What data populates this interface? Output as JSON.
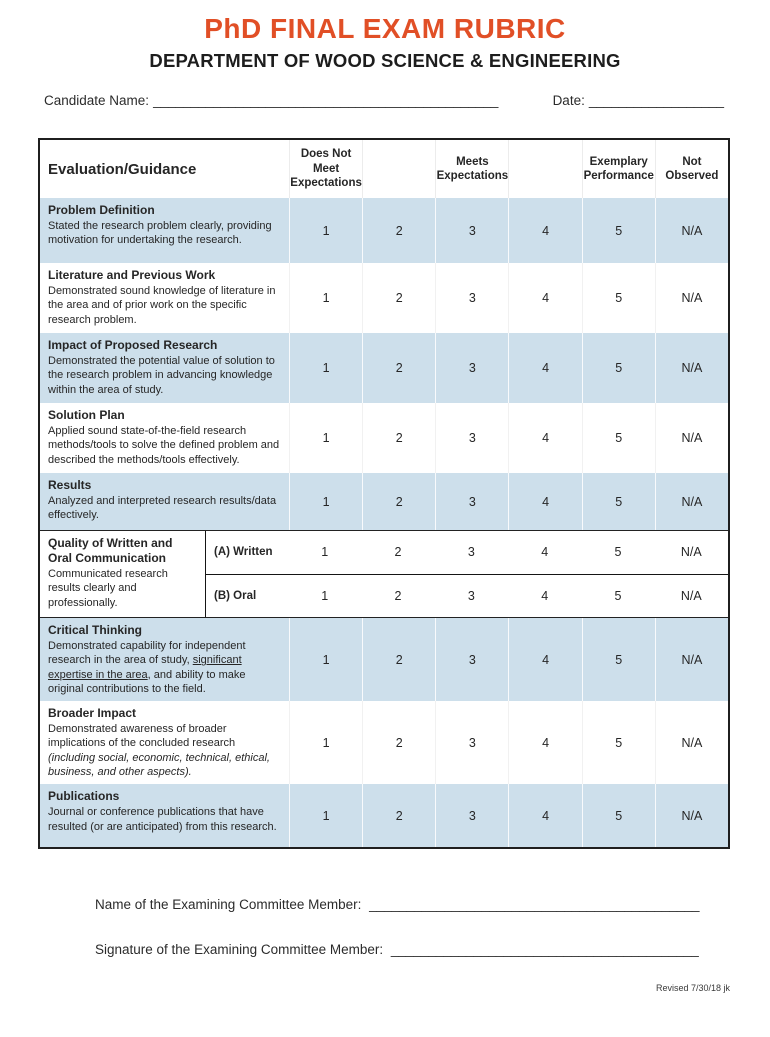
{
  "colors": {
    "accent": "#E14F26",
    "row_shade": "#CDDFEB"
  },
  "header": {
    "title": "PhD FINAL EXAM RUBRIC",
    "subtitle": "DEPARTMENT OF WOOD SCIENCE & ENGINEERING",
    "candidate_label": "Candidate Name:",
    "candidate_blank": "______________________________________________",
    "date_label": "Date:",
    "date_blank": "__________________"
  },
  "table": {
    "first_col_header": "Evaluation/Guidance",
    "col_headers": [
      "Does Not Meet Expectations",
      "",
      "Meets Expectations",
      "",
      "Exemplary Performance",
      "Not Observed"
    ],
    "scale": [
      "1",
      "2",
      "3",
      "4",
      "5",
      "N/A"
    ],
    "rows": [
      {
        "title": "Problem Definition",
        "desc": "Stated the research problem clearly, providing motivation for undertaking the research.",
        "shaded": true
      },
      {
        "title": "Literature and Previous Work",
        "desc": "Demonstrated sound knowledge of literature in the area and of prior work on the specific research problem.",
        "shaded": false
      },
      {
        "title": "Impact of Proposed Research",
        "desc": "Demonstrated the potential value of solution to the research problem in advancing knowledge within the area of study.",
        "shaded": true
      },
      {
        "title": "Solution Plan",
        "desc": "Applied sound state-of-the-field research methods/tools to solve the defined problem and described the methods/tools effectively.",
        "shaded": false
      },
      {
        "title": "Results",
        "desc": "Analyzed and interpreted research results/data effectively.",
        "shaded": true
      },
      {
        "title": "Quality of Written and Oral Communication",
        "desc": "Communicated research results clearly and professionally.",
        "shaded": false,
        "subrows": [
          "(A) Written",
          "(B) Oral"
        ]
      },
      {
        "title": "Critical Thinking",
        "desc_pre": "Demonstrated capability for independent research in the area of study, ",
        "desc_underline": "significant expertise in the area",
        "desc_post": ", and ability to make original contributions to the field.",
        "shaded": true
      },
      {
        "title": "Broader Impact",
        "desc": "Demonstrated awareness of broader implications of the concluded research ",
        "desc_italic": "(including social, economic, technical, ethical, business, and other aspects).",
        "shaded": false
      },
      {
        "title": "Publications",
        "desc": "Journal or conference publications that have resulted (or are anticipated) from this research.",
        "shaded": true
      }
    ]
  },
  "footer": {
    "name_label": "Name of the Examining Committee Member:",
    "name_blank": "____________________________________________",
    "signature_label": "Signature of the Examining Committee Member:",
    "signature_blank": "_________________________________________",
    "revised": "Revised 7/30/18 jk"
  }
}
